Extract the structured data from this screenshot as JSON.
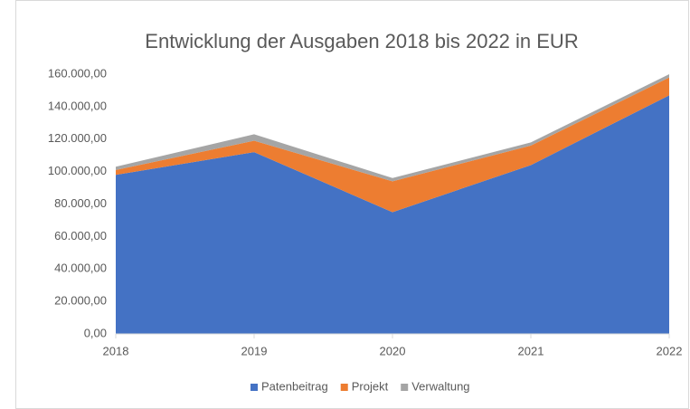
{
  "chart_data": {
    "type": "area",
    "stacked": true,
    "title": "Entwicklung der Ausgaben 2018 bis 2022 in EUR",
    "categories": [
      "2018",
      "2019",
      "2020",
      "2021",
      "2022"
    ],
    "series": [
      {
        "name": "Patenbeitrag",
        "color": "#4472c4",
        "values": [
          98000,
          112000,
          75000,
          104000,
          147000
        ]
      },
      {
        "name": "Projekt",
        "color": "#ed7d31",
        "values": [
          3000,
          7000,
          19000,
          12000,
          11000
        ]
      },
      {
        "name": "Verwaltung",
        "color": "#a5a5a5",
        "values": [
          2000,
          4000,
          2000,
          2000,
          2000
        ]
      }
    ],
    "ylim": [
      0,
      160000
    ],
    "yticks": [
      {
        "value": 0,
        "label": "0,00"
      },
      {
        "value": 20000,
        "label": "20.000,00"
      },
      {
        "value": 40000,
        "label": "40.000,00"
      },
      {
        "value": 60000,
        "label": "60.000,00"
      },
      {
        "value": 80000,
        "label": "80.000,00"
      },
      {
        "value": 100000,
        "label": "100.000,00"
      },
      {
        "value": 120000,
        "label": "120.000,00"
      },
      {
        "value": 140000,
        "label": "140.000,00"
      },
      {
        "value": 160000,
        "label": "160.000,00"
      }
    ],
    "grid": false,
    "legend": "bottom"
  }
}
